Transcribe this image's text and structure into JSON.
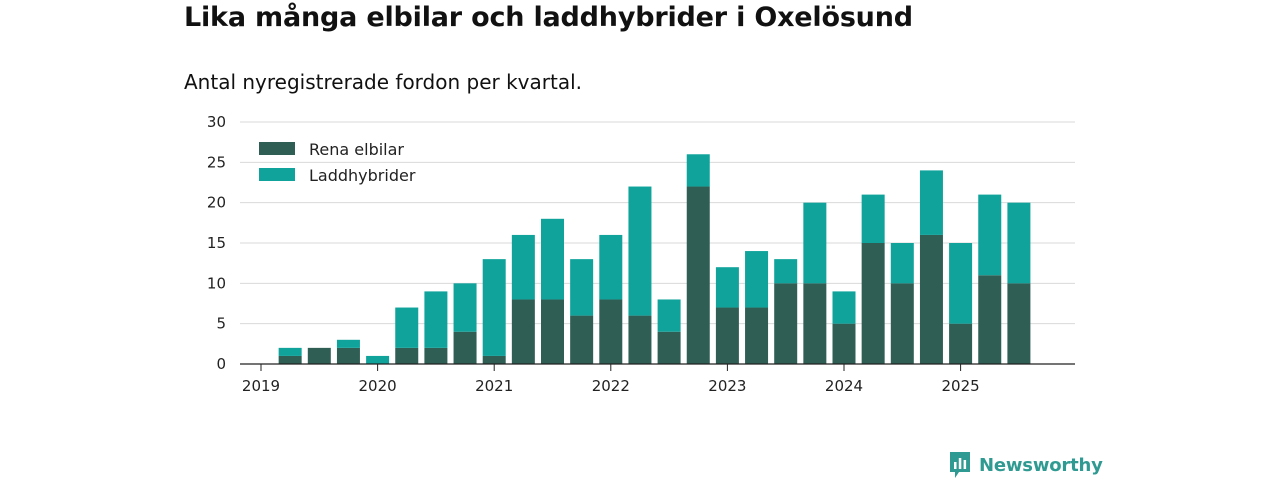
{
  "title": "Lika många elbilar och laddhybrider i Oxelösund",
  "subtitle": "Antal nyregistrerade fordon per kvartal.",
  "brand": "Newsworthy",
  "colors": {
    "electric": "#2f5e55",
    "hybrid": "#0fa39b",
    "grid": "#d9d9d9",
    "axis": "#222222",
    "brand": "#2f9a92"
  },
  "chart_data": {
    "type": "bar",
    "stacked": true,
    "title": "Lika många elbilar och laddhybrider i Oxelösund",
    "subtitle": "Antal nyregistrerade fordon per kvartal.",
    "xlabel": "",
    "ylabel": "",
    "ylim": [
      0,
      30
    ],
    "yticks": [
      0,
      5,
      10,
      15,
      20,
      25,
      30
    ],
    "grid": true,
    "legend_position": "top-left",
    "year_ticks": [
      {
        "label": "2019",
        "quarter_index": 0
      },
      {
        "label": "2020",
        "quarter_index": 4
      },
      {
        "label": "2021",
        "quarter_index": 8
      },
      {
        "label": "2022",
        "quarter_index": 12
      },
      {
        "label": "2023",
        "quarter_index": 16
      },
      {
        "label": "2024",
        "quarter_index": 20
      },
      {
        "label": "2025",
        "quarter_index": 24
      }
    ],
    "categories": [
      "2019 Q1",
      "2019 Q2",
      "2019 Q3",
      "2019 Q4",
      "2020 Q1",
      "2020 Q2",
      "2020 Q3",
      "2020 Q4",
      "2021 Q1",
      "2021 Q2",
      "2021 Q3",
      "2021 Q4",
      "2022 Q1",
      "2022 Q2",
      "2022 Q3",
      "2022 Q4",
      "2023 Q1",
      "2023 Q2",
      "2023 Q3",
      "2023 Q4",
      "2024 Q1",
      "2024 Q2",
      "2024 Q3",
      "2024 Q4",
      "2025 Q1",
      "2025 Q2",
      "2025 Q3"
    ],
    "series": [
      {
        "name": "Rena elbilar",
        "color": "#2f5e55",
        "values": [
          null,
          1,
          2,
          2,
          0,
          2,
          2,
          4,
          1,
          8,
          8,
          6,
          8,
          6,
          4,
          22,
          7,
          7,
          10,
          10,
          5,
          15,
          10,
          16,
          5,
          11,
          10
        ]
      },
      {
        "name": "Laddhybrider",
        "color": "#0fa39b",
        "values": [
          null,
          1,
          0,
          1,
          1,
          5,
          7,
          6,
          12,
          8,
          10,
          7,
          8,
          16,
          4,
          4,
          5,
          7,
          3,
          10,
          4,
          6,
          5,
          8,
          10,
          10,
          10
        ]
      }
    ]
  }
}
